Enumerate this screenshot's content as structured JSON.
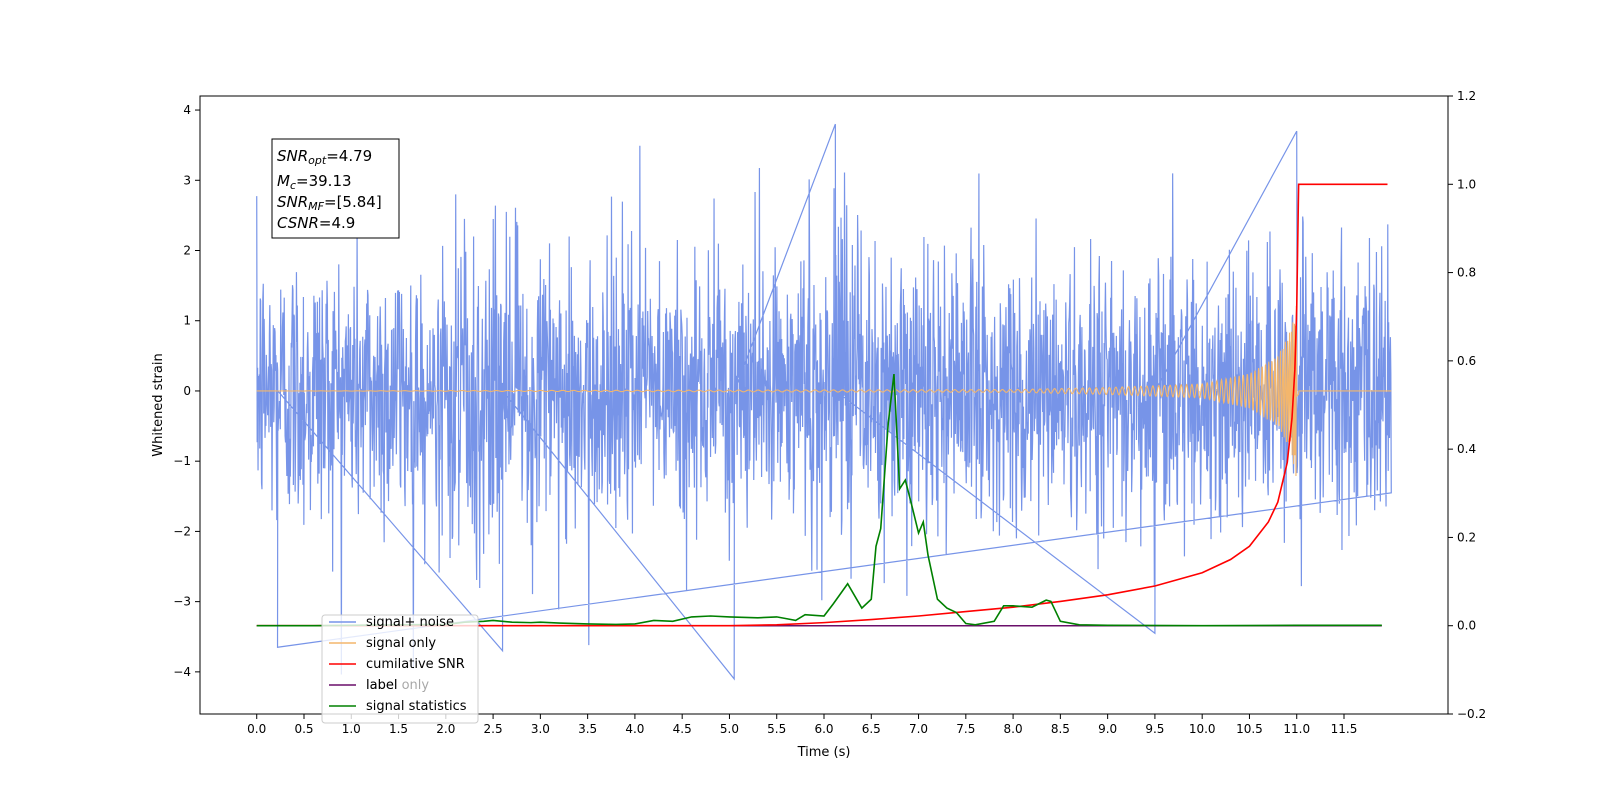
{
  "chart_data": {
    "type": "line",
    "xlabel": "Time (s)",
    "ylabel": "Whitened strain",
    "xlim": [
      -0.6,
      12.6
    ],
    "ylim": [
      -4.6,
      4.2
    ],
    "y2lim": [
      -0.2,
      1.2
    ],
    "x_ticks": [
      0.0,
      0.5,
      1.0,
      1.5,
      2.0,
      2.5,
      3.0,
      3.5,
      4.0,
      4.5,
      5.0,
      5.5,
      6.0,
      6.5,
      7.0,
      7.5,
      8.0,
      8.5,
      9.0,
      9.5,
      10.0,
      10.5,
      11.0,
      11.5
    ],
    "x_tick_labels": [
      "0.0",
      "0.5",
      "1.0",
      "1.5",
      "2.0",
      "2.5",
      "3.0",
      "3.5",
      "4.0",
      "4.5",
      "5.0",
      "5.5",
      "6.0",
      "6.5",
      "7.0",
      "7.5",
      "8.0",
      "8.5",
      "9.0",
      "9.5",
      "10.0",
      "10.5",
      "11.0",
      "11.5"
    ],
    "y_ticks": [
      -4,
      -3,
      -2,
      -1,
      0,
      1,
      2,
      3,
      4
    ],
    "y_tick_labels": [
      "−4",
      "−3",
      "−2",
      "−1",
      "0",
      "1",
      "2",
      "3",
      "4"
    ],
    "y2_ticks": [
      -0.2,
      0.0,
      0.2,
      0.4,
      0.6,
      0.8,
      1.0,
      1.2
    ],
    "y2_tick_labels": [
      "−0.2",
      "0.0",
      "0.2",
      "0.4",
      "0.6",
      "0.8",
      "1.0",
      "1.2"
    ],
    "legend_position": "lower-left",
    "grid": false,
    "annotation": {
      "lines": [
        {
          "main": "SNR",
          "sub": "opt",
          "rest": "=4.79"
        },
        {
          "main": "M",
          "sub": "c",
          "rest": "=39.13"
        },
        {
          "main": "SNR",
          "sub": "MF",
          "rest": "=[5.84]"
        },
        {
          "main": "CSNR",
          "sub": "",
          "rest": "=4.9"
        }
      ]
    },
    "series": [
      {
        "name": "signal+ noise",
        "axis": "left",
        "color": "#7794e8",
        "x_range": [
          0.0,
          12.0
        ],
        "value_range": [
          -4.1,
          3.8
        ],
        "noise_sigma": 1.0,
        "notable_points": [
          [
            0.22,
            -3.65
          ],
          [
            2.6,
            -3.7
          ],
          [
            5.05,
            -4.1
          ],
          [
            6.12,
            3.8
          ],
          [
            9.5,
            -3.45
          ],
          [
            11.0,
            3.7
          ]
        ]
      },
      {
        "name": "signal only",
        "axis": "left",
        "color": "#f3b66c",
        "x_range": [
          0.0,
          12.0
        ],
        "merger_time": 11.0,
        "peak_amplitude": 1.3,
        "x": [
          0.0,
          8.0,
          9.0,
          10.0,
          10.5,
          10.8,
          10.95,
          11.0,
          11.05,
          12.0
        ],
        "envelope": [
          0.0,
          0.02,
          0.05,
          0.1,
          0.25,
          0.5,
          0.9,
          1.3,
          0.0,
          0.0
        ]
      },
      {
        "name": "cumilative SNR",
        "axis": "right",
        "color": "#ff0000",
        "x": [
          0.0,
          5.0,
          5.5,
          6.0,
          6.5,
          7.0,
          7.5,
          8.0,
          8.5,
          9.0,
          9.5,
          10.0,
          10.3,
          10.5,
          10.7,
          10.8,
          10.9,
          10.95,
          10.98,
          11.0,
          11.02,
          11.96
        ],
        "values": [
          0.0,
          0.0,
          0.002,
          0.007,
          0.014,
          0.022,
          0.032,
          0.042,
          0.055,
          0.07,
          0.09,
          0.12,
          0.15,
          0.18,
          0.235,
          0.28,
          0.37,
          0.47,
          0.58,
          0.72,
          1.0,
          1.0
        ]
      },
      {
        "name": "label",
        "axis": "right",
        "color": "#6a0f6a",
        "x": [
          0.0,
          11.0,
          11.9
        ],
        "values": [
          0.0,
          0.0,
          0.0
        ]
      },
      {
        "name": "label only",
        "axis": "right",
        "color": "#6a0f6a",
        "legend_only": true
      },
      {
        "name": "signal statistics",
        "axis": "right",
        "color": "#008000",
        "x": [
          0.0,
          0.6,
          1.0,
          1.5,
          2.0,
          2.2,
          2.4,
          2.5,
          2.7,
          2.9,
          3.0,
          3.2,
          3.5,
          3.8,
          4.0,
          4.2,
          4.4,
          4.6,
          4.8,
          5.0,
          5.3,
          5.5,
          5.6,
          5.7,
          5.8,
          6.0,
          6.1,
          6.25,
          6.4,
          6.5,
          6.55,
          6.6,
          6.68,
          6.74,
          6.8,
          6.86,
          6.92,
          7.0,
          7.05,
          7.1,
          7.2,
          7.3,
          7.4,
          7.5,
          7.6,
          7.8,
          7.9,
          8.0,
          8.2,
          8.35,
          8.4,
          8.5,
          8.7,
          9.0,
          10.0,
          11.0,
          11.9
        ],
        "values": [
          0.0,
          0.0,
          0.001,
          0.002,
          0.003,
          0.008,
          0.01,
          0.012,
          0.008,
          0.007,
          0.008,
          0.006,
          0.004,
          0.003,
          0.004,
          0.012,
          0.01,
          0.02,
          0.022,
          0.02,
          0.018,
          0.02,
          0.016,
          0.012,
          0.025,
          0.022,
          0.05,
          0.095,
          0.04,
          0.06,
          0.18,
          0.22,
          0.46,
          0.57,
          0.31,
          0.33,
          0.28,
          0.21,
          0.235,
          0.16,
          0.06,
          0.04,
          0.03,
          0.005,
          0.002,
          0.01,
          0.045,
          0.045,
          0.042,
          0.058,
          0.055,
          0.01,
          0.002,
          0.001,
          0.0,
          0.001,
          0.001
        ]
      }
    ]
  }
}
